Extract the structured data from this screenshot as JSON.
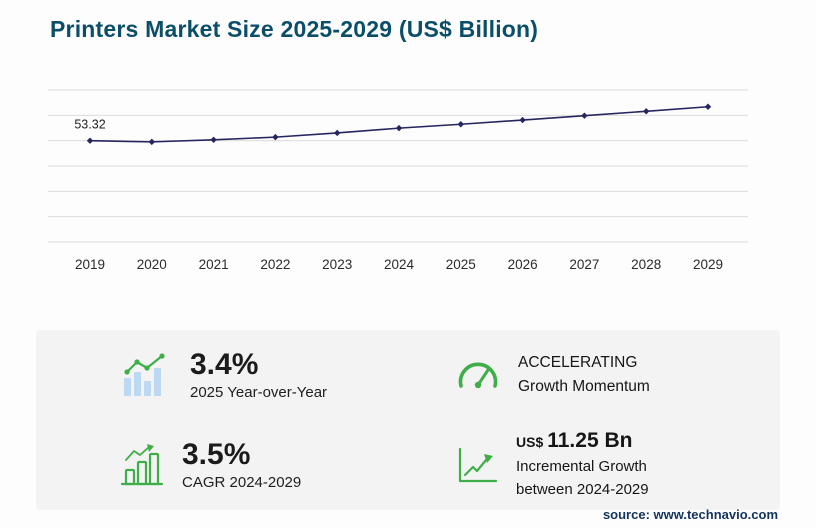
{
  "header": {
    "title": "Printers Market Size 2025-2029 (US$ Billion)"
  },
  "chart_data": {
    "type": "line",
    "title": "Printers Market Size 2025-2029 (US$ Billion)",
    "x": [
      2019,
      2020,
      2021,
      2022,
      2023,
      2024,
      2025,
      2026,
      2027,
      2028,
      2029
    ],
    "values": [
      53.32,
      52.7,
      53.8,
      55.2,
      57.4,
      59.94,
      61.98,
      64.2,
      66.5,
      68.8,
      71.19
    ],
    "first_point_label": "53.32",
    "xlabel": "",
    "ylabel": "",
    "ylim": [
      0,
      80
    ],
    "grid": true,
    "gridline_count": 7,
    "legend": "none",
    "line_color": "#26265e"
  },
  "stats": {
    "yoy": {
      "value": "3.4%",
      "label": "2025 Year-over-Year",
      "icon": "bars-growth-line-icon"
    },
    "momentum": {
      "line1": "ACCELERATING",
      "line2": "Growth Momentum",
      "icon": "speedometer-gauge-icon"
    },
    "cagr": {
      "value": "3.5%",
      "label": "CAGR 2024-2029",
      "icon": "outlined-bars-icon"
    },
    "incremental": {
      "currency": "US$",
      "value": "11.25 Bn",
      "line1": "Incremental Growth",
      "line2": "between 2024-2029",
      "icon": "axis-growth-arrow-icon"
    }
  },
  "footer": {
    "source": "source: www.technavio.com"
  },
  "colors": {
    "accent_green": "#3fae49",
    "chart_line": "#26265e",
    "title_color": "#0a4e68",
    "panel_bg": "#f3f3f3",
    "icon_bar_blue": "#bcd8f2",
    "gridline": "#dcdcdc"
  }
}
